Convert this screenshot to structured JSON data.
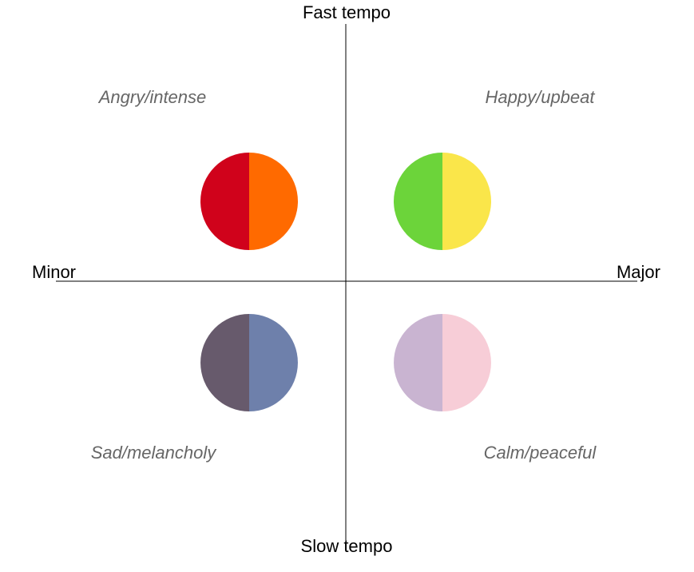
{
  "axes": {
    "top_label": "Fast tempo",
    "bottom_label": "Slow tempo",
    "left_label": "Minor",
    "right_label": "Major"
  },
  "quadrants": [
    {
      "id": "angry",
      "label": "Angry/intense",
      "left_color": "#d0021b",
      "right_color": "#ff6a00"
    },
    {
      "id": "happy",
      "label": "Happy/upbeat",
      "left_color": "#6cd43a",
      "right_color": "#fae64a"
    },
    {
      "id": "sad",
      "label": "Sad/melancholy",
      "left_color": "#675a6c",
      "right_color": "#6e80ab"
    },
    {
      "id": "calm",
      "label": "Calm/peaceful",
      "left_color": "#c9b4d1",
      "right_color": "#f7cdd7"
    }
  ]
}
